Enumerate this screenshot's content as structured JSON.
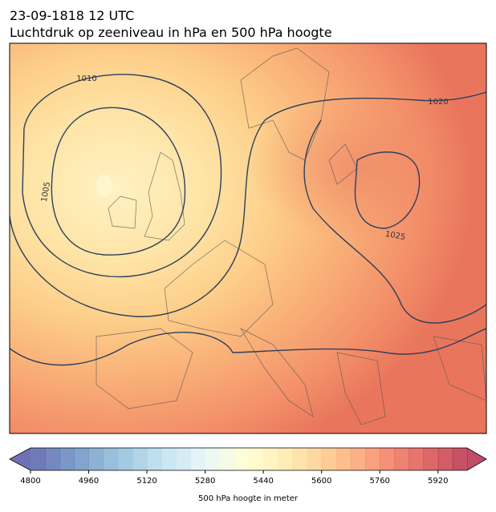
{
  "header": {
    "title": "23-09-1818 12 UTC",
    "subtitle": "Luchtdruk op zeeniveau in hPa en 500 hPa hoogte"
  },
  "map": {
    "contour_labels": [
      "1010",
      "1005",
      "1020",
      "1025"
    ]
  },
  "colorbar": {
    "vlim": [
      4800,
      6000
    ],
    "ticks": [
      4800,
      4960,
      5120,
      5280,
      5440,
      5600,
      5760,
      5920
    ],
    "label": "500 hPa hoogte in meter"
  }
}
